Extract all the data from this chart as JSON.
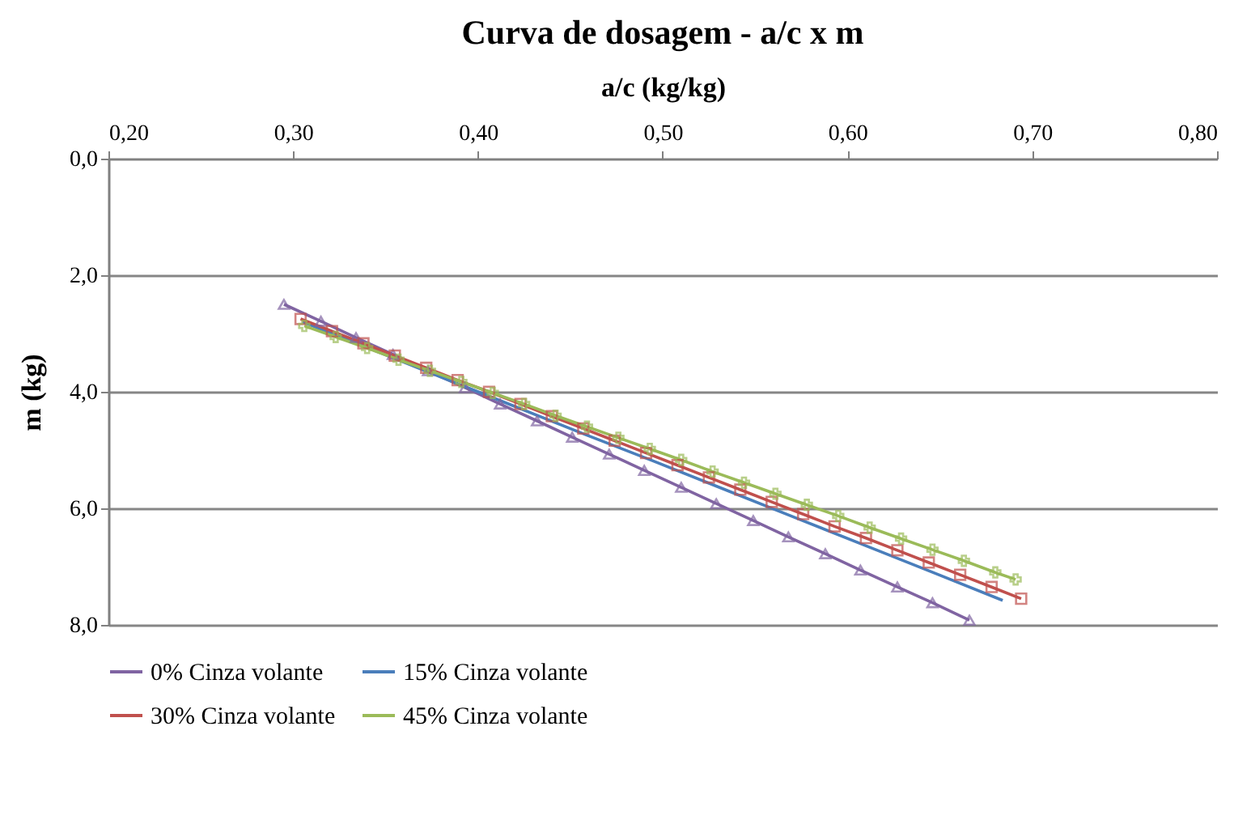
{
  "chart_data": {
    "type": "line",
    "title": "Curva de dosagem - a/c x m",
    "xlabel": "a/c (kg/kg)",
    "ylabel": "m (kg)",
    "xlim": [
      0.2,
      0.8
    ],
    "xticks": [
      {
        "value": 0.2,
        "label": "0,20"
      },
      {
        "value": 0.3,
        "label": "0,30"
      },
      {
        "value": 0.4,
        "label": "0,40"
      },
      {
        "value": 0.5,
        "label": "0,50"
      },
      {
        "value": 0.6,
        "label": "0,60"
      },
      {
        "value": 0.7,
        "label": "0,70"
      },
      {
        "value": 0.8,
        "label": "0,80"
      }
    ],
    "ylim": [
      8,
      0
    ],
    "yticks": [
      {
        "value": 0,
        "label": "0,0"
      },
      {
        "value": 2,
        "label": "2,0"
      },
      {
        "value": 4,
        "label": "4,0"
      },
      {
        "value": 6,
        "label": "6,0"
      },
      {
        "value": 8,
        "label": "8,0"
      }
    ],
    "grid": "y",
    "legend": "bottom",
    "series": [
      {
        "name": "0% Cinza volante",
        "color": "#8064a2",
        "marker": "triangle",
        "x": [
          0.295,
          0.315,
          0.334,
          0.354,
          0.373,
          0.393,
          0.412,
          0.432,
          0.451,
          0.471,
          0.49,
          0.51,
          0.529,
          0.549,
          0.568,
          0.588,
          0.607,
          0.627,
          0.646,
          0.666
        ],
        "values": [
          2.5,
          2.79,
          3.07,
          3.36,
          3.64,
          3.93,
          4.21,
          4.5,
          4.78,
          5.07,
          5.35,
          5.64,
          5.92,
          6.21,
          6.49,
          6.78,
          7.06,
          7.35,
          7.62,
          7.92
        ]
      },
      {
        "name": "15% Cinza volante",
        "color": "#4a7ebb",
        "marker": "none",
        "x": [
          0.305,
          0.343,
          0.381,
          0.419,
          0.457,
          0.495,
          0.533,
          0.571,
          0.609,
          0.647,
          0.684
        ],
        "values": [
          2.8,
          3.28,
          3.76,
          4.24,
          4.72,
          5.19,
          5.67,
          6.15,
          6.63,
          7.11,
          7.58
        ]
      },
      {
        "name": "30% Cinza volante",
        "color": "#c0504d",
        "marker": "square",
        "x": [
          0.304,
          0.321,
          0.338,
          0.355,
          0.372,
          0.389,
          0.406,
          0.423,
          0.44,
          0.457,
          0.474,
          0.491,
          0.508,
          0.525,
          0.542,
          0.559,
          0.576,
          0.593,
          0.61,
          0.627,
          0.644,
          0.661,
          0.678,
          0.694
        ],
        "values": [
          2.75,
          2.96,
          3.17,
          3.38,
          3.59,
          3.8,
          4.0,
          4.21,
          4.42,
          4.63,
          4.84,
          5.05,
          5.26,
          5.47,
          5.68,
          5.89,
          6.1,
          6.31,
          6.51,
          6.72,
          6.93,
          7.14,
          7.35,
          7.55
        ]
      },
      {
        "name": "45% Cinza volante",
        "color": "#9bbb59",
        "marker": "cross",
        "x": [
          0.306,
          0.323,
          0.34,
          0.357,
          0.374,
          0.391,
          0.408,
          0.425,
          0.442,
          0.459,
          0.476,
          0.493,
          0.51,
          0.527,
          0.544,
          0.561,
          0.578,
          0.595,
          0.612,
          0.629,
          0.646,
          0.663,
          0.68,
          0.691
        ],
        "values": [
          2.87,
          3.06,
          3.25,
          3.45,
          3.64,
          3.83,
          4.02,
          4.21,
          4.41,
          4.6,
          4.79,
          4.98,
          5.17,
          5.37,
          5.56,
          5.75,
          5.94,
          6.13,
          6.33,
          6.52,
          6.71,
          6.9,
          7.1,
          7.22
        ]
      }
    ]
  }
}
